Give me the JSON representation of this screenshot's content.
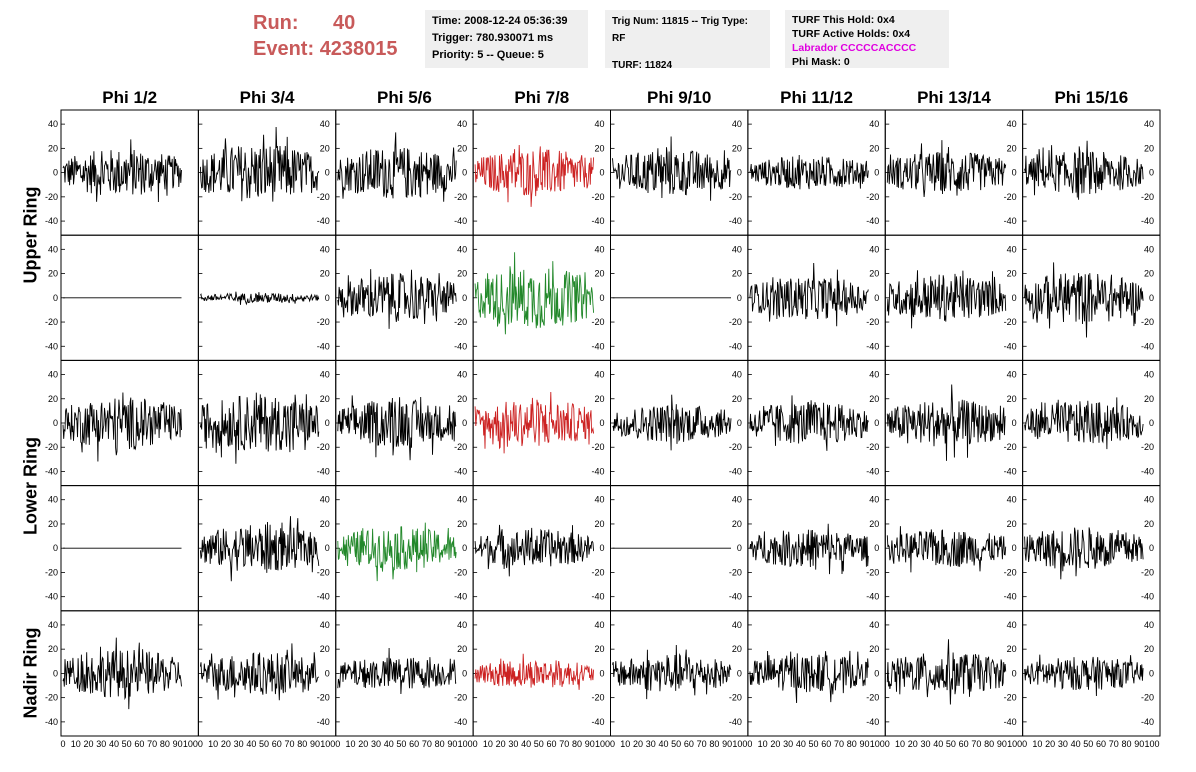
{
  "header": {
    "run_label": "Run:",
    "run_value": "40",
    "event_label": "Event:",
    "event_value": "4238015",
    "time": "Time: 2008-12-24 05:36:39",
    "trigger": "Trigger: 780.930071 ms",
    "priority": "Priority: 5 -- Queue: 5",
    "trig_num": "Trig Num: 11815 -- Trig Type: RF",
    "turf": "TURF: 11824",
    "turf_this_hold": "TURF This Hold: 0x4",
    "turf_active_holds": "TURF Active Holds: 0x4",
    "labrador": "Labrador CCCCCACCCC",
    "phi_mask": "Phi Mask: 0"
  },
  "columns": [
    "Phi 1/2",
    "Phi 3/4",
    "Phi 5/6",
    "Phi 7/8",
    "Phi 9/10",
    "Phi 11/12",
    "Phi 13/14",
    "Phi 15/16"
  ],
  "rows": [
    "Upper Ring",
    "Lower Ring",
    "Nadir Ring"
  ],
  "colors": {
    "red": "#cc2222",
    "green": "#22882a",
    "black": "#000000",
    "header_red": "#c85a5a",
    "labrador": "#e000e0"
  },
  "chart_data": {
    "type": "line",
    "x_ticks": [
      0,
      10,
      20,
      30,
      40,
      50,
      60,
      70,
      80,
      90,
      100
    ],
    "y_ticks": [
      -40,
      -20,
      0,
      20,
      40
    ],
    "xlim": [
      0,
      100
    ],
    "ylim": [
      -50,
      50
    ],
    "panels": [
      [
        {
          "c": "black",
          "a": 20
        },
        {
          "c": "black",
          "a": 25
        },
        {
          "c": "black",
          "a": 22
        },
        {
          "c": "red",
          "a": 20
        },
        {
          "c": "black",
          "a": 20
        },
        {
          "c": "black",
          "a": 14
        },
        {
          "c": "black",
          "a": 18
        },
        {
          "c": "black",
          "a": 18
        }
      ],
      [
        {
          "c": "flat",
          "a": 0
        },
        {
          "c": "black",
          "a": 4
        },
        {
          "c": "black",
          "a": 20
        },
        {
          "c": "green",
          "a": 26
        },
        {
          "c": "flat",
          "a": 0
        },
        {
          "c": "black",
          "a": 18
        },
        {
          "c": "black",
          "a": 20
        },
        {
          "c": "black",
          "a": 22
        }
      ],
      [
        {
          "c": "black",
          "a": 22
        },
        {
          "c": "black",
          "a": 24
        },
        {
          "c": "black",
          "a": 20
        },
        {
          "c": "red",
          "a": 20
        },
        {
          "c": "black",
          "a": 16
        },
        {
          "c": "black",
          "a": 18
        },
        {
          "c": "black",
          "a": 20
        },
        {
          "c": "black",
          "a": 18
        }
      ],
      [
        {
          "c": "flat",
          "a": 0
        },
        {
          "c": "black",
          "a": 20
        },
        {
          "c": "green",
          "a": 18
        },
        {
          "c": "black",
          "a": 16
        },
        {
          "c": "flat",
          "a": 0
        },
        {
          "c": "black",
          "a": 16
        },
        {
          "c": "black",
          "a": 16
        },
        {
          "c": "black",
          "a": 18
        }
      ],
      [
        {
          "c": "black",
          "a": 20
        },
        {
          "c": "black",
          "a": 18
        },
        {
          "c": "black",
          "a": 14
        },
        {
          "c": "red",
          "a": 12
        },
        {
          "c": "black",
          "a": 16
        },
        {
          "c": "black",
          "a": 16
        },
        {
          "c": "black",
          "a": 18
        },
        {
          "c": "black",
          "a": 14
        }
      ]
    ]
  }
}
